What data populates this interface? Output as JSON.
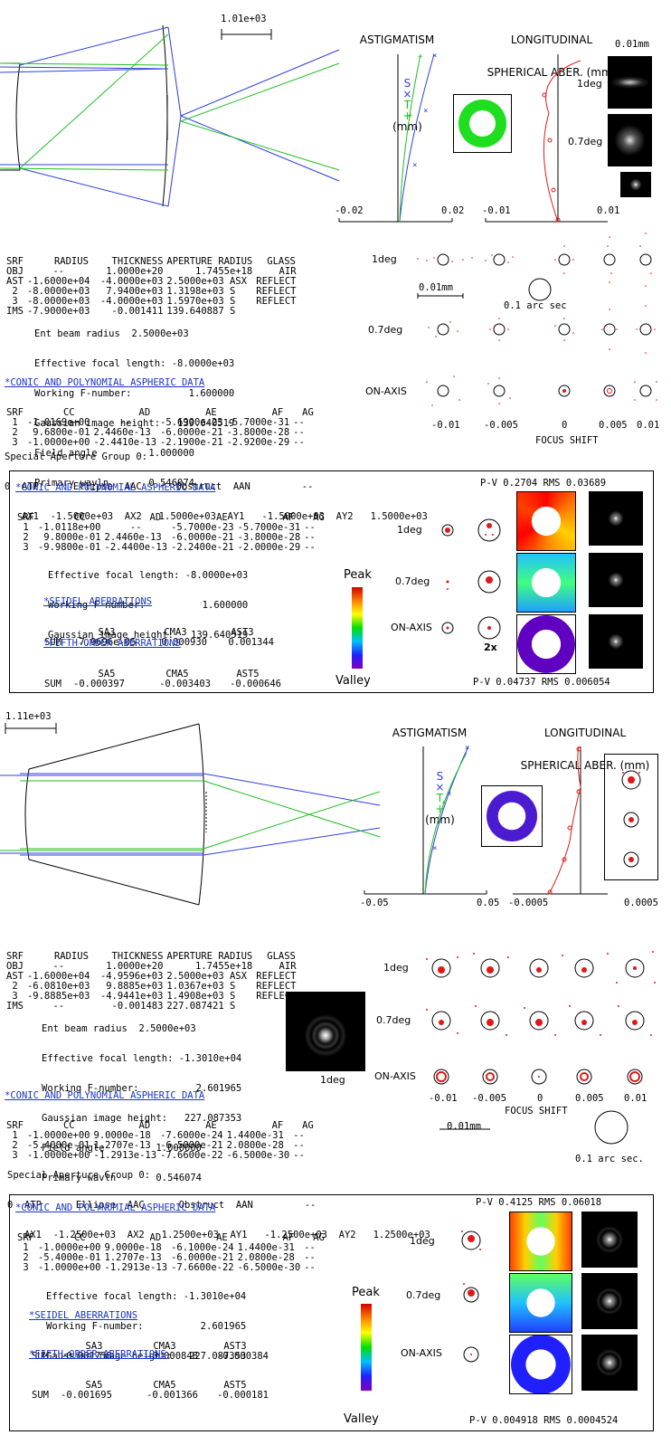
{
  "scale1": "1.01e+03",
  "scale2": "1.11e+03",
  "astig_title": "ASTIGMATISM",
  "astig_legend_s": "S",
  "astig_legend_x": "×",
  "astig_legend_t": "T",
  "astig_legend_plus": "+",
  "astig_unit": "(mm)",
  "long_title1": "LONGITUDINAL",
  "long_title2": "SPHERICAL ABER.",
  "long_unit": "(mm)",
  "d1": {
    "astig_ticks": [
      "-0.02",
      "0.02"
    ],
    "long_ticks": [
      "-0.01",
      "0.01"
    ],
    "psf_scale": "0.01mm",
    "psf_labels": [
      "1deg",
      "0.7deg"
    ],
    "table_header": [
      "SRF",
      "RADIUS",
      "THICKNESS",
      "APERTURE RADIUS",
      "GLASS"
    ],
    "table_rows": [
      [
        "OBJ",
        "--",
        "1.0000e+20",
        "1.7455e+18",
        "AIR"
      ],
      [
        "AST",
        "-1.6000e+04",
        "-4.0000e+03",
        "2.5000e+03 ASX",
        "REFLECT"
      ],
      [
        "2",
        "-8.0000e+03",
        "7.9400e+03",
        "1.3198e+03 S",
        "REFLECT"
      ],
      [
        "3",
        "-8.0000e+03",
        "-4.0000e+03",
        "1.5970e+03 S",
        "REFLECT"
      ],
      [
        "IMS",
        "-7.9000e+03",
        "-0.001411",
        "139.640887 S",
        ""
      ]
    ],
    "params": [
      "Ent beam radius  2.5000e+03",
      "Effective focal length: -8.0000e+03",
      "Working F-number:          1.600000",
      "Gaussian image height:   139.640519",
      "Field angle         1.000000",
      "Primary wavln       0.546074"
    ],
    "conic_title": "*CONIC AND POLYNOMIAL ASPHERIC DATA",
    "conic_header": [
      "SRF",
      "CC",
      "AD",
      "AE",
      "AF",
      "AG"
    ],
    "conic_rows": [
      [
        "1",
        "-1.0169e+00",
        "--",
        "-5.6900e-23",
        "-5.7000e-31",
        "--"
      ],
      [
        "2",
        "9.6800e-01",
        "2.4460e-13",
        "-6.0000e-21",
        "-3.8000e-28",
        "--"
      ],
      [
        "3",
        "-1.0000e+00",
        "-2.4410e-13",
        "-2.1900e-21",
        "-2.9200e-29",
        "--"
      ]
    ],
    "spec_title": "Special Aperture Group 0:",
    "spec_header": "0  ATP      Ellipse  AAC      Obstruct  AAN         --",
    "spec_row": "   AX1  -1.5000e+03  AX2   1.5000e+03  AY1   -1.5000e+03  AY2   1.5000e+03",
    "spot_rows": [
      "1deg",
      "0.7deg",
      "ON-AXIS"
    ],
    "spot_scale": "0.01mm",
    "arc_label": "0.1 arc sec",
    "focus_ticks": [
      "-0.01",
      "-0.005",
      "0",
      "0.005",
      "0.01"
    ],
    "focus_label": "FOCUS SHIFT"
  },
  "b1": {
    "conic_title": "*CONIC AND POLYNOMIAL ASPHERIC DATA",
    "conic_header": [
      "SRF",
      "CC",
      "AD",
      "AE",
      "AF",
      "AG"
    ],
    "conic_rows": [
      [
        "1",
        "-1.0118e+00",
        "--",
        "-5.7000e-23",
        "-5.7000e-31",
        "--"
      ],
      [
        "2",
        "9.8000e-01",
        "2.4460e-13",
        "-6.0000e-21",
        "-3.8000e-28",
        "--"
      ],
      [
        "3",
        "-9.9800e-01",
        "-2.4400e-13",
        "-2.2400e-21",
        "-2.0000e-29",
        "--"
      ]
    ],
    "params": [
      "Effective focal length: -8.0000e+03",
      "Working F-number:          1.600000",
      "Gaussian image height:   139.640519"
    ],
    "seidel_title": "*SEIDEL ABERRATIONS",
    "seidel_header": [
      "",
      "SA3",
      "CMA3",
      "AST3"
    ],
    "seidel_row": [
      "SUM",
      "-7.9696e-05",
      "0.000930",
      "0.001344"
    ],
    "fifth_title": "*FIFTH-ORDER ABERRATIONS",
    "fifth_header": [
      "",
      "SA5",
      "CMA5",
      "AST5"
    ],
    "fifth_row": [
      "SUM",
      "-0.000397",
      "-0.003403",
      "-0.000646"
    ],
    "peak": "Peak",
    "valley": "Valley",
    "pv_top": "P-V 0.2704 RMS 0.03689",
    "pv_bottom": "P-V 0.04737 RMS 0.006054",
    "field_labels": [
      "1deg",
      "0.7deg",
      "ON-AXIS"
    ],
    "mag": "2x"
  },
  "d2": {
    "astig_ticks": [
      "-0.05",
      "0.05"
    ],
    "long_ticks": [
      "-0.0005",
      "0.0005"
    ],
    "table_header": [
      "SRF",
      "RADIUS",
      "THICKNESS",
      "APERTURE RADIUS",
      "GLASS"
    ],
    "table_rows": [
      [
        "OBJ",
        "--",
        "1.0000e+20",
        "1.7455e+18",
        "AIR"
      ],
      [
        "AST",
        "-1.6000e+04",
        "-4.9596e+03",
        "2.5000e+03 ASX",
        "REFLECT"
      ],
      [
        "2",
        "-6.0810e+03",
        "9.8885e+03",
        "1.0367e+03 S",
        "REFLECT"
      ],
      [
        "3",
        "-9.8885e+03",
        "-4.9441e+03",
        "1.4908e+03 S",
        "REFLECT"
      ],
      [
        "IMS",
        "--",
        "-0.001483",
        "227.087421 S",
        ""
      ]
    ],
    "params": [
      "Ent beam radius  2.5000e+03",
      "Effective focal length: -1.3010e+04",
      "Working F-number:          2.601965",
      "Gaussian image height:   227.087353",
      "Field angle         1.000000",
      "Primary wavln       0.546074"
    ],
    "psf_label": "1deg",
    "conic_title": "*CONIC AND POLYNOMIAL ASPHERIC DATA",
    "conic_header": [
      "SRF",
      "CC",
      "AD",
      "AE",
      "AF",
      "AG"
    ],
    "conic_rows": [
      [
        "1",
        "-1.0000e+00",
        "9.0000e-18",
        "-7.6000e-24",
        "1.4400e-31",
        "--"
      ],
      [
        "2",
        "-5.4000e-01",
        "1.2707e-13",
        "-6.5000e-21",
        "2.0800e-28",
        "--"
      ],
      [
        "3",
        "-1.0000e+00",
        "-1.2913e-13",
        "-7.6600e-22",
        "-6.5000e-30",
        "--"
      ]
    ],
    "spec_title": "Special Aperture Group 0:",
    "spec_header": "0  ATP      Ellipse  AAC      Obstruct  AAN         --",
    "spec_row": "   AX1  -1.2500e+03  AX2   1.2500e+03  AY1   -1.2500e+03  AY2   1.2500e+03",
    "spot_rows": [
      "1deg",
      "0.7deg",
      "ON-AXIS"
    ],
    "spot_scale": "0.01mm",
    "arc_label": "0.1 arc sec.",
    "focus_ticks": [
      "-0.01",
      "-0.005",
      "0",
      "0.005",
      "0.01"
    ],
    "focus_label": "FOCUS SHIFT"
  },
  "b2": {
    "conic_title": "*CONIC AND POLYNOMIAL ASPHERIC DATA",
    "conic_header": [
      "SRF",
      "CC",
      "AD",
      "AE",
      "AF",
      "AG"
    ],
    "conic_rows": [
      [
        "1",
        "-1.0000e+00",
        "9.0000e-18",
        "-6.1000e-24",
        "1.4400e-31",
        "--"
      ],
      [
        "2",
        "-5.4000e-01",
        "1.2707e-13",
        "-6.0000e-21",
        "2.0800e-28",
        "--"
      ],
      [
        "3",
        "-1.0000e+00",
        "-1.2913e-13",
        "-7.6600e-22",
        "-6.5000e-30",
        "--"
      ]
    ],
    "params": [
      "Effective focal length: -1.3010e+04",
      "Working F-number:          2.601965",
      "Gaussian image height:   227.087353"
    ],
    "seidel_title": "*SEIDEL ABERRATIONS",
    "seidel_header": [
      "",
      "SA3",
      "CMA3",
      "AST3"
    ],
    "seidel_row": [
      "SUM",
      "-0.001758",
      "-0.000848",
      "-0.000384"
    ],
    "fifth_title": "*FIFTH-ORDER ABERRATIONS",
    "fifth_header": [
      "",
      "SA5",
      "CMA5",
      "AST5"
    ],
    "fifth_row": [
      "SUM",
      "-0.001695",
      "-0.001366",
      "-0.000181"
    ],
    "peak": "Peak",
    "valley": "Valley",
    "pv_top": "P-V 0.4125 RMS 0.06018",
    "pv_bottom": "P-V 0.004918 RMS 0.0004524",
    "field_labels": [
      "1deg",
      "0.7deg",
      "ON-AXIS"
    ]
  },
  "colors": {
    "blue": "#2f3fe0",
    "green": "#1fbf1f",
    "red": "#e01818",
    "link": "#1a33cc"
  }
}
